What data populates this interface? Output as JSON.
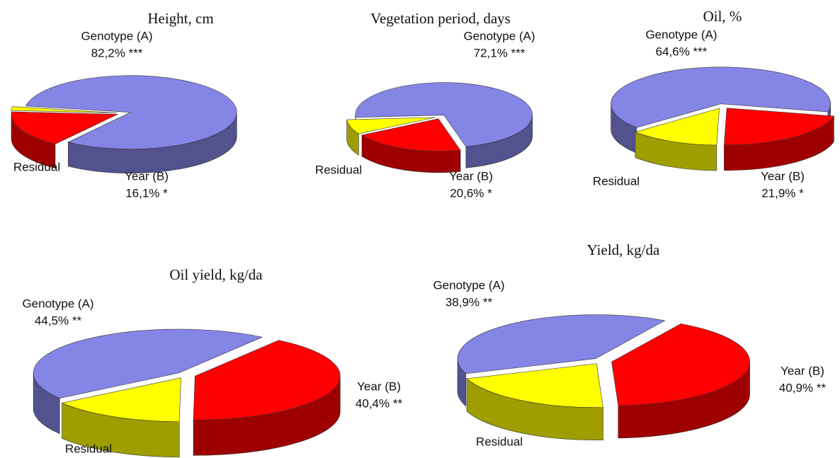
{
  "chart_data": [
    {
      "type": "pie3d",
      "title": "Height, cm",
      "categories": [
        "Genotype (A)",
        "Year (B)",
        "Residual"
      ],
      "values": [
        82.2,
        16.1,
        1.7
      ],
      "value_labels": [
        "82,2% ***",
        "16,1% *",
        null
      ],
      "colors": [
        "#8585e6",
        "#ff0000",
        "#ffff00"
      ]
    },
    {
      "type": "pie3d",
      "title": "Vegetation period, days",
      "categories": [
        "Genotype (A)",
        "Year (B)",
        "Residual"
      ],
      "values": [
        72.1,
        20.6,
        7.3
      ],
      "value_labels": [
        "72,1% ***",
        "20,6% *",
        null
      ],
      "colors": [
        "#8585e6",
        "#ff0000",
        "#ffff00"
      ]
    },
    {
      "type": "pie3d",
      "title": "Oil, %",
      "categories": [
        "Genotype (A)",
        "Year (B)",
        "Residual"
      ],
      "values": [
        64.6,
        21.9,
        13.5
      ],
      "value_labels": [
        "64,6% ***",
        "21,9% *",
        null
      ],
      "colors": [
        "#8585e6",
        "#ff0000",
        "#ffff00"
      ]
    },
    {
      "type": "pie3d",
      "title": "Oil yield, kg/da",
      "categories": [
        "Genotype (A)",
        "Year (B)",
        "Residual"
      ],
      "values": [
        44.5,
        40.4,
        15.1
      ],
      "value_labels": [
        "44,5% **",
        "40,4% **",
        null
      ],
      "colors": [
        "#8585e6",
        "#ff0000",
        "#ffff00"
      ]
    },
    {
      "type": "pie3d",
      "title": "Yield, kg/da",
      "categories": [
        "Genotype (A)",
        "Year (B)",
        "Residual"
      ],
      "values": [
        38.9,
        40.9,
        20.2
      ],
      "value_labels": [
        "38,9% **",
        "40,9% **",
        null
      ],
      "colors": [
        "#8585e6",
        "#ff0000",
        "#ffff00"
      ]
    }
  ]
}
